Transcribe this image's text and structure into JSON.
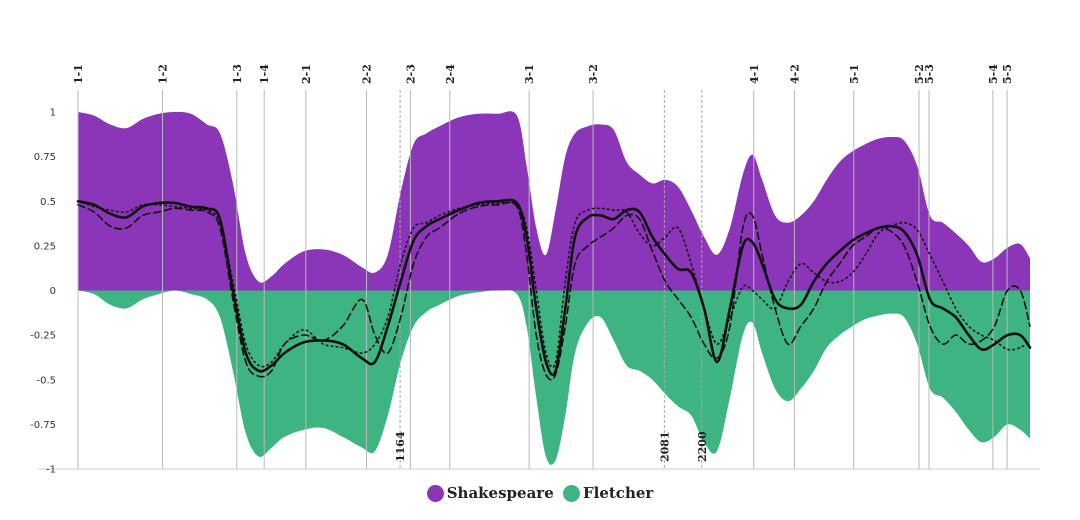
{
  "chart_data": {
    "type": "area",
    "title": "",
    "xlabel": "",
    "ylabel": "",
    "xlim": [
      0,
      2950
    ],
    "ylim": [
      -1,
      1
    ],
    "y_ticks": [
      "1",
      "0.75",
      "0.5",
      "0.25",
      "0",
      "-0.25",
      "-0.5",
      "-0.75",
      "-1"
    ],
    "y_tick_values": [
      1,
      0.75,
      0.5,
      0.25,
      0,
      -0.25,
      -0.5,
      -0.75,
      -1
    ],
    "grid": false,
    "legend_position": "bottom",
    "legend": [
      {
        "name": "Shakespeare",
        "color": "#8b35b8"
      },
      {
        "name": "Fletcher",
        "color": "#3db482"
      }
    ],
    "scene_markers": [
      {
        "label": "1-1",
        "x": 0
      },
      {
        "label": "1-2",
        "x": 262
      },
      {
        "label": "1-3",
        "x": 492
      },
      {
        "label": "1-4",
        "x": 577
      },
      {
        "label": "2-1",
        "x": 706
      },
      {
        "label": "2-2",
        "x": 894
      },
      {
        "label": "2-3",
        "x": 1030
      },
      {
        "label": "2-4",
        "x": 1152
      },
      {
        "label": "3-1",
        "x": 1398
      },
      {
        "label": "3-2",
        "x": 1596
      },
      {
        "label": "4-1",
        "x": 2094
      },
      {
        "label": "4-2",
        "x": 2220
      },
      {
        "label": "5-1",
        "x": 2404
      },
      {
        "label": "5-2",
        "x": 2606
      },
      {
        "label": "5-3",
        "x": 2637
      },
      {
        "label": "5-4",
        "x": 2835
      },
      {
        "label": "5-5",
        "x": 2879
      }
    ],
    "line_markers": [
      {
        "label": "1164",
        "x": 998
      },
      {
        "label": "2081",
        "x": 1817
      },
      {
        "label": "2200",
        "x": 1933
      }
    ],
    "series": [
      {
        "name": "Shakespeare",
        "type": "area",
        "color": "#8b35b8",
        "x": [
          0,
          50,
          100,
          150,
          200,
          250,
          300,
          350,
          400,
          440,
          480,
          520,
          560,
          600,
          640,
          700,
          760,
          820,
          880,
          920,
          960,
          1000,
          1040,
          1080,
          1120,
          1180,
          1240,
          1300,
          1360,
          1390,
          1420,
          1450,
          1480,
          1510,
          1540,
          1580,
          1620,
          1660,
          1700,
          1740,
          1780,
          1820,
          1860,
          1900,
          1940,
          1980,
          2020,
          2060,
          2090,
          2120,
          2160,
          2200,
          2240,
          2280,
          2320,
          2360,
          2400,
          2440,
          2480,
          2520,
          2560,
          2600,
          2640,
          2680,
          2720,
          2760,
          2800,
          2840,
          2880,
          2920,
          2950
        ],
        "y": [
          1,
          0.98,
          0.93,
          0.91,
          0.96,
          0.99,
          1,
          0.99,
          0.93,
          0.88,
          0.6,
          0.2,
          0.05,
          0.08,
          0.15,
          0.22,
          0.23,
          0.2,
          0.13,
          0.1,
          0.2,
          0.55,
          0.82,
          0.88,
          0.92,
          0.97,
          0.99,
          0.99,
          0.98,
          0.7,
          0.35,
          0.2,
          0.45,
          0.75,
          0.88,
          0.92,
          0.93,
          0.9,
          0.72,
          0.65,
          0.6,
          0.62,
          0.58,
          0.45,
          0.3,
          0.2,
          0.35,
          0.65,
          0.76,
          0.62,
          0.42,
          0.38,
          0.42,
          0.5,
          0.62,
          0.72,
          0.78,
          0.82,
          0.85,
          0.86,
          0.84,
          0.7,
          0.42,
          0.38,
          0.32,
          0.25,
          0.16,
          0.18,
          0.24,
          0.26,
          0.18
        ]
      },
      {
        "name": "Fletcher",
        "type": "area",
        "color": "#3db482",
        "x": [
          0,
          50,
          100,
          150,
          200,
          250,
          300,
          350,
          400,
          440,
          480,
          520,
          560,
          600,
          640,
          700,
          760,
          820,
          880,
          920,
          960,
          1000,
          1040,
          1080,
          1120,
          1180,
          1240,
          1300,
          1360,
          1390,
          1420,
          1450,
          1480,
          1510,
          1540,
          1580,
          1620,
          1660,
          1700,
          1740,
          1780,
          1820,
          1860,
          1900,
          1940,
          1980,
          2020,
          2060,
          2090,
          2120,
          2160,
          2200,
          2240,
          2280,
          2320,
          2360,
          2400,
          2440,
          2480,
          2520,
          2560,
          2600,
          2640,
          2680,
          2720,
          2760,
          2800,
          2840,
          2880,
          2920,
          2950
        ],
        "y": [
          0,
          -0.02,
          -0.08,
          -0.1,
          -0.05,
          -0.02,
          0,
          -0.02,
          -0.05,
          -0.15,
          -0.45,
          -0.8,
          -0.93,
          -0.88,
          -0.82,
          -0.78,
          -0.77,
          -0.82,
          -0.88,
          -0.9,
          -0.7,
          -0.4,
          -0.2,
          -0.12,
          -0.08,
          -0.03,
          -0.01,
          0,
          -0.02,
          -0.2,
          -0.6,
          -0.93,
          -0.95,
          -0.7,
          -0.35,
          -0.18,
          -0.15,
          -0.28,
          -0.42,
          -0.45,
          -0.5,
          -0.58,
          -0.65,
          -0.7,
          -0.85,
          -0.9,
          -0.6,
          -0.25,
          -0.18,
          -0.35,
          -0.55,
          -0.62,
          -0.55,
          -0.45,
          -0.32,
          -0.25,
          -0.2,
          -0.16,
          -0.14,
          -0.13,
          -0.15,
          -0.3,
          -0.55,
          -0.6,
          -0.68,
          -0.78,
          -0.85,
          -0.82,
          -0.75,
          -0.78,
          -0.83
        ]
      },
      {
        "name": "",
        "type": "line",
        "style": "solid",
        "x": [
          0,
          50,
          100,
          150,
          200,
          250,
          300,
          350,
          400,
          440,
          480,
          520,
          560,
          600,
          640,
          700,
          760,
          820,
          880,
          920,
          960,
          1000,
          1040,
          1080,
          1120,
          1180,
          1240,
          1300,
          1360,
          1390,
          1420,
          1450,
          1480,
          1510,
          1540,
          1580,
          1620,
          1660,
          1700,
          1740,
          1780,
          1820,
          1860,
          1900,
          1940,
          1980,
          2020,
          2060,
          2090,
          2120,
          2160,
          2200,
          2240,
          2280,
          2320,
          2360,
          2400,
          2440,
          2480,
          2520,
          2560,
          2600,
          2640,
          2680,
          2720,
          2760,
          2800,
          2840,
          2880,
          2920,
          2950
        ],
        "y": [
          0.5,
          0.48,
          0.43,
          0.41,
          0.47,
          0.49,
          0.49,
          0.47,
          0.46,
          0.4,
          0.0,
          -0.35,
          -0.45,
          -0.42,
          -0.35,
          -0.29,
          -0.28,
          -0.3,
          -0.38,
          -0.4,
          -0.2,
          0.05,
          0.28,
          0.36,
          0.4,
          0.45,
          0.49,
          0.5,
          0.49,
          0.3,
          -0.1,
          -0.4,
          -0.45,
          -0.1,
          0.3,
          0.41,
          0.42,
          0.4,
          0.45,
          0.44,
          0.3,
          0.2,
          0.12,
          0.1,
          -0.1,
          -0.4,
          -0.1,
          0.25,
          0.27,
          0.15,
          -0.05,
          -0.1,
          -0.08,
          0.05,
          0.15,
          0.22,
          0.28,
          0.32,
          0.35,
          0.36,
          0.33,
          0.2,
          -0.05,
          -0.1,
          -0.15,
          -0.25,
          -0.33,
          -0.3,
          -0.25,
          -0.25,
          -0.32
        ]
      },
      {
        "name": "",
        "type": "line",
        "style": "dashed",
        "x": [
          0,
          50,
          100,
          150,
          200,
          250,
          300,
          350,
          400,
          440,
          480,
          520,
          560,
          600,
          640,
          700,
          760,
          820,
          880,
          920,
          960,
          1000,
          1040,
          1080,
          1120,
          1180,
          1240,
          1300,
          1360,
          1390,
          1420,
          1450,
          1480,
          1510,
          1540,
          1580,
          1620,
          1660,
          1700,
          1740,
          1780,
          1820,
          1860,
          1900,
          1940,
          1980,
          2020,
          2060,
          2090,
          2120,
          2160,
          2200,
          2240,
          2280,
          2320,
          2360,
          2400,
          2440,
          2480,
          2520,
          2560,
          2600,
          2640,
          2680,
          2720,
          2760,
          2800,
          2840,
          2880,
          2920,
          2950
        ],
        "y": [
          0.48,
          0.44,
          0.36,
          0.35,
          0.42,
          0.44,
          0.46,
          0.45,
          0.44,
          0.35,
          -0.05,
          -0.4,
          -0.48,
          -0.45,
          -0.3,
          -0.25,
          -0.28,
          -0.2,
          -0.05,
          -0.25,
          -0.35,
          -0.15,
          0.15,
          0.3,
          0.35,
          0.43,
          0.47,
          0.48,
          0.47,
          0.2,
          -0.25,
          -0.47,
          -0.47,
          -0.2,
          0.15,
          0.25,
          0.3,
          0.35,
          0.42,
          0.4,
          0.22,
          0.05,
          -0.05,
          -0.15,
          -0.3,
          -0.38,
          -0.2,
          0.35,
          0.42,
          0.2,
          -0.1,
          -0.3,
          -0.2,
          -0.1,
          0.05,
          0.15,
          0.25,
          0.3,
          0.35,
          0.33,
          0.25,
          0.05,
          -0.2,
          -0.3,
          -0.25,
          -0.3,
          -0.28,
          -0.2,
          0.0,
          0.0,
          -0.2
        ]
      },
      {
        "name": "",
        "type": "line",
        "style": "dotted",
        "x": [
          0,
          50,
          100,
          150,
          200,
          250,
          300,
          350,
          400,
          440,
          480,
          520,
          560,
          600,
          640,
          700,
          760,
          820,
          880,
          920,
          960,
          1000,
          1040,
          1080,
          1120,
          1180,
          1240,
          1300,
          1360,
          1390,
          1420,
          1450,
          1480,
          1510,
          1540,
          1580,
          1620,
          1660,
          1700,
          1740,
          1780,
          1820,
          1860,
          1900,
          1940,
          1980,
          2020,
          2060,
          2090,
          2120,
          2160,
          2200,
          2240,
          2280,
          2320,
          2360,
          2400,
          2440,
          2480,
          2520,
          2560,
          2600,
          2640,
          2680,
          2720,
          2760,
          2800,
          2840,
          2880,
          2920,
          2950
        ],
        "y": [
          0.5,
          0.47,
          0.45,
          0.44,
          0.48,
          0.48,
          0.47,
          0.46,
          0.45,
          0.38,
          0.05,
          -0.3,
          -0.42,
          -0.4,
          -0.3,
          -0.22,
          -0.3,
          -0.32,
          -0.35,
          -0.3,
          -0.15,
          0.15,
          0.35,
          0.38,
          0.42,
          0.46,
          0.48,
          0.49,
          0.48,
          0.35,
          0.0,
          -0.35,
          -0.4,
          0.05,
          0.38,
          0.45,
          0.46,
          0.45,
          0.44,
          0.32,
          0.25,
          0.3,
          0.35,
          0.15,
          -0.1,
          -0.3,
          -0.15,
          0.02,
          0.0,
          -0.05,
          -0.1,
          0.05,
          0.15,
          0.1,
          0.05,
          0.05,
          0.1,
          0.2,
          0.32,
          0.36,
          0.38,
          0.34,
          0.2,
          0.05,
          -0.1,
          -0.2,
          -0.25,
          -0.28,
          -0.33,
          -0.32,
          -0.28
        ]
      }
    ]
  }
}
